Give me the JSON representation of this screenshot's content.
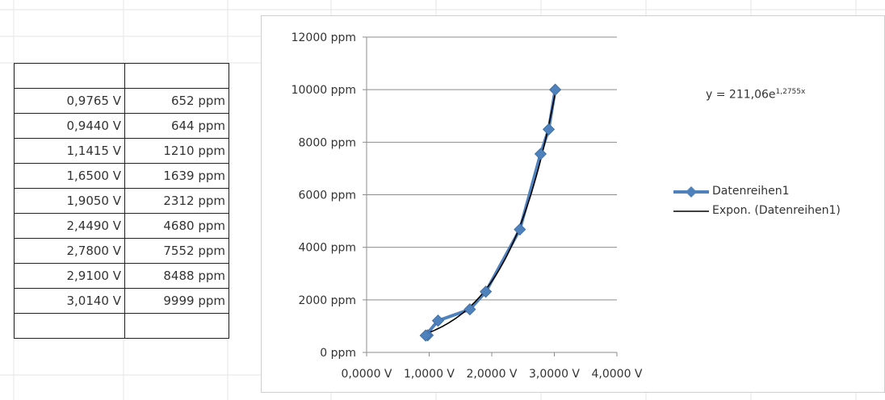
{
  "table": {
    "rows": [
      [
        "",
        ""
      ],
      [
        "0,9765 V",
        "652 ppm"
      ],
      [
        "0,9440 V",
        "644 ppm"
      ],
      [
        "1,1415 V",
        "1210 ppm"
      ],
      [
        "1,6500 V",
        "1639 ppm"
      ],
      [
        "1,9050 V",
        "2312 ppm"
      ],
      [
        "2,4490 V",
        "4680 ppm"
      ],
      [
        "2,7800 V",
        "7552 ppm"
      ],
      [
        "2,9100 V",
        "8488 ppm"
      ],
      [
        "3,0140 V",
        "9999 ppm"
      ],
      [
        "",
        ""
      ]
    ]
  },
  "chart_data": {
    "type": "scatter",
    "x_ticks": [
      "0,0000 V",
      "1,0000 V",
      "2,0000 V",
      "3,0000 V",
      "4,0000 V"
    ],
    "y_ticks": [
      "0 ppm",
      "2000 ppm",
      "4000 ppm",
      "6000 ppm",
      "8000 ppm",
      "10000 ppm",
      "12000 ppm"
    ],
    "xlim": [
      0,
      4
    ],
    "ylim": [
      0,
      12000
    ],
    "grid": "horizontal",
    "legend_position": "right",
    "series": [
      {
        "name": "Datenreihen1",
        "color": "#4f81bd",
        "marker": "diamond",
        "points": [
          {
            "x": 0.9765,
            "y": 652
          },
          {
            "x": 0.944,
            "y": 644
          },
          {
            "x": 1.1415,
            "y": 1210
          },
          {
            "x": 1.65,
            "y": 1639
          },
          {
            "x": 1.905,
            "y": 2312
          },
          {
            "x": 2.449,
            "y": 4680
          },
          {
            "x": 2.78,
            "y": 7552
          },
          {
            "x": 2.91,
            "y": 8488
          },
          {
            "x": 3.014,
            "y": 9999
          }
        ]
      }
    ],
    "trendline": {
      "name": "Expon. (Datenreihen1)",
      "color": "#000000",
      "a": 211.06,
      "b": 1.2755,
      "equation": "y = 211,06e",
      "equation_exp": "1,2755x"
    }
  }
}
